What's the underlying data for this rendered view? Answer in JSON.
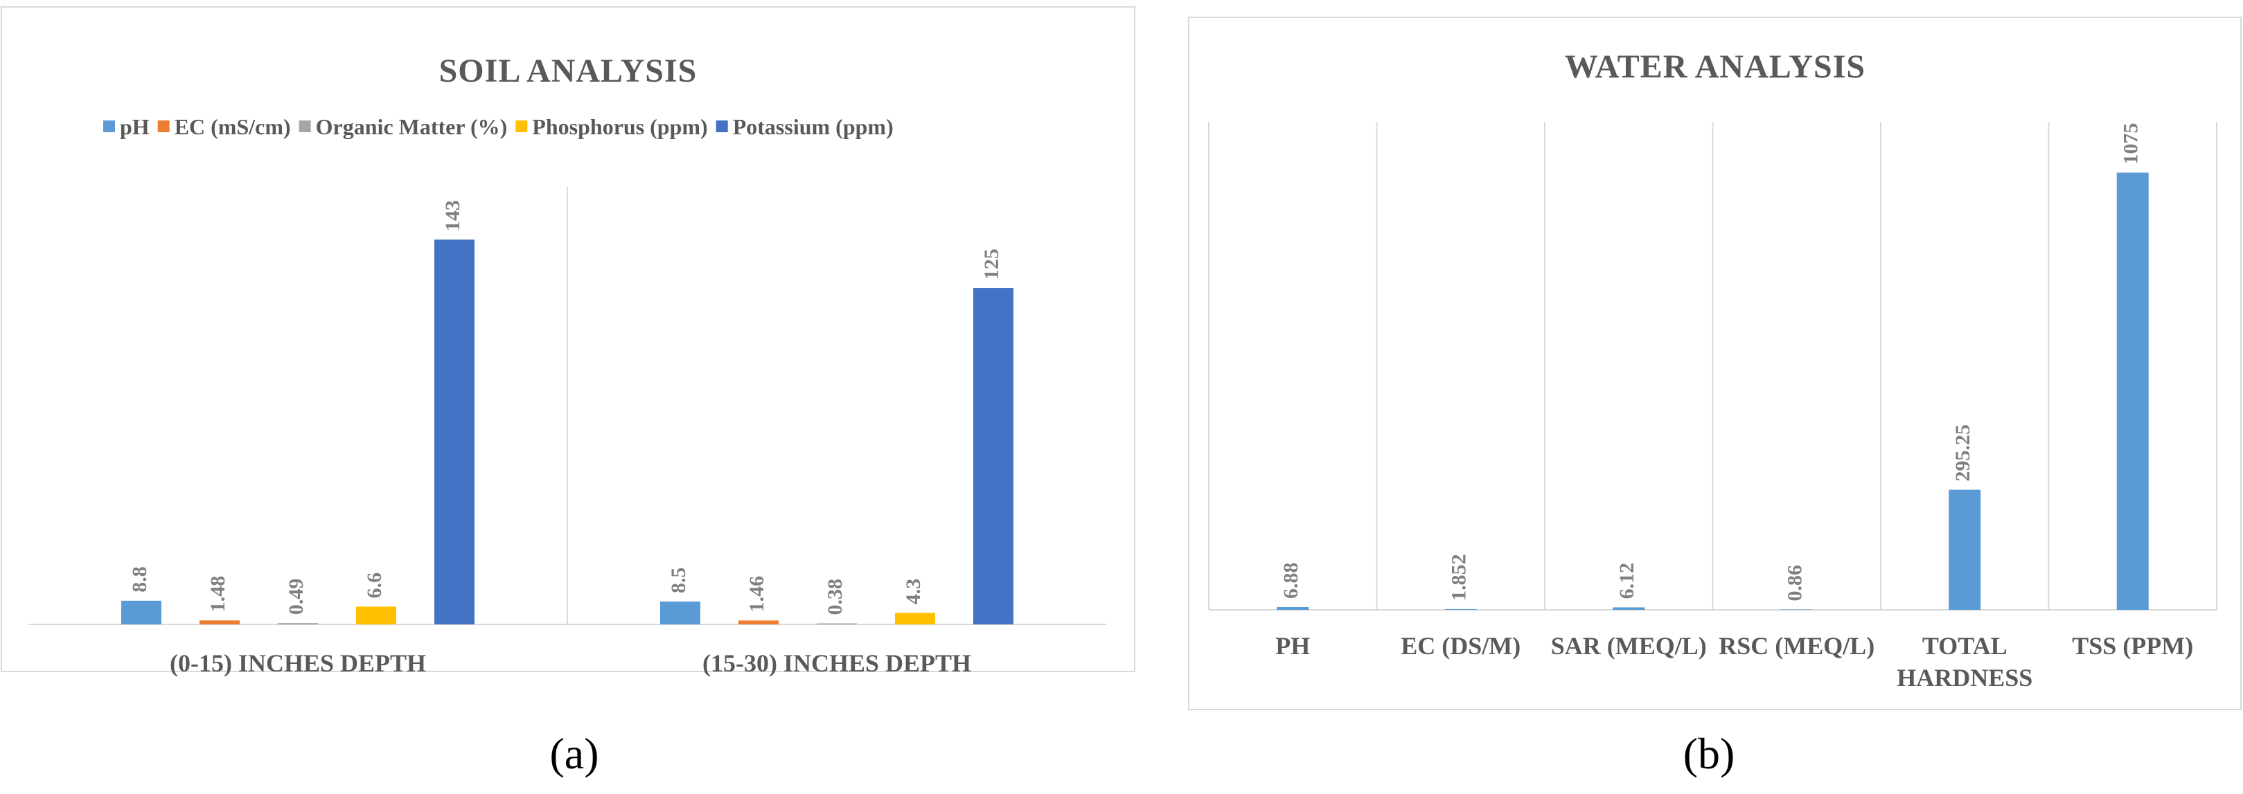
{
  "chart_data": [
    {
      "type": "bar",
      "title": "SOIL ANALYSIS",
      "categories": [
        "(0-15) INCHES DEPTH",
        "(15-30) INCHES DEPTH"
      ],
      "series": [
        {
          "name": "pH",
          "color": "#5b9bd5",
          "values": [
            8.8,
            8.5
          ]
        },
        {
          "name": "EC (mS/cm)",
          "color": "#ed7d31",
          "values": [
            1.48,
            1.46
          ]
        },
        {
          "name": "Organic Matter (%)",
          "color": "#a5a5a5",
          "values": [
            0.49,
            0.38
          ]
        },
        {
          "name": "Phosphorus (ppm)",
          "color": "#ffc000",
          "values": [
            6.6,
            4.3
          ]
        },
        {
          "name": "Potassium (ppm)",
          "color": "#4472c4",
          "values": [
            143,
            125
          ]
        }
      ],
      "ylim": [
        0,
        160
      ],
      "legend": "top"
    },
    {
      "type": "bar",
      "title": "WATER ANALYSIS",
      "categories": [
        "PH",
        "EC (DS/M)",
        "SAR (MEQ/L)",
        "RSC (MEQ/L)",
        "TOTAL HARDNESS",
        "TSS (PPM)"
      ],
      "values": [
        6.88,
        1.852,
        6.12,
        0.86,
        295.25,
        1075
      ],
      "color": "#5b9bd5",
      "ylim": [
        0,
        1200
      ]
    }
  ],
  "captions": [
    "(a)",
    "(b)"
  ]
}
